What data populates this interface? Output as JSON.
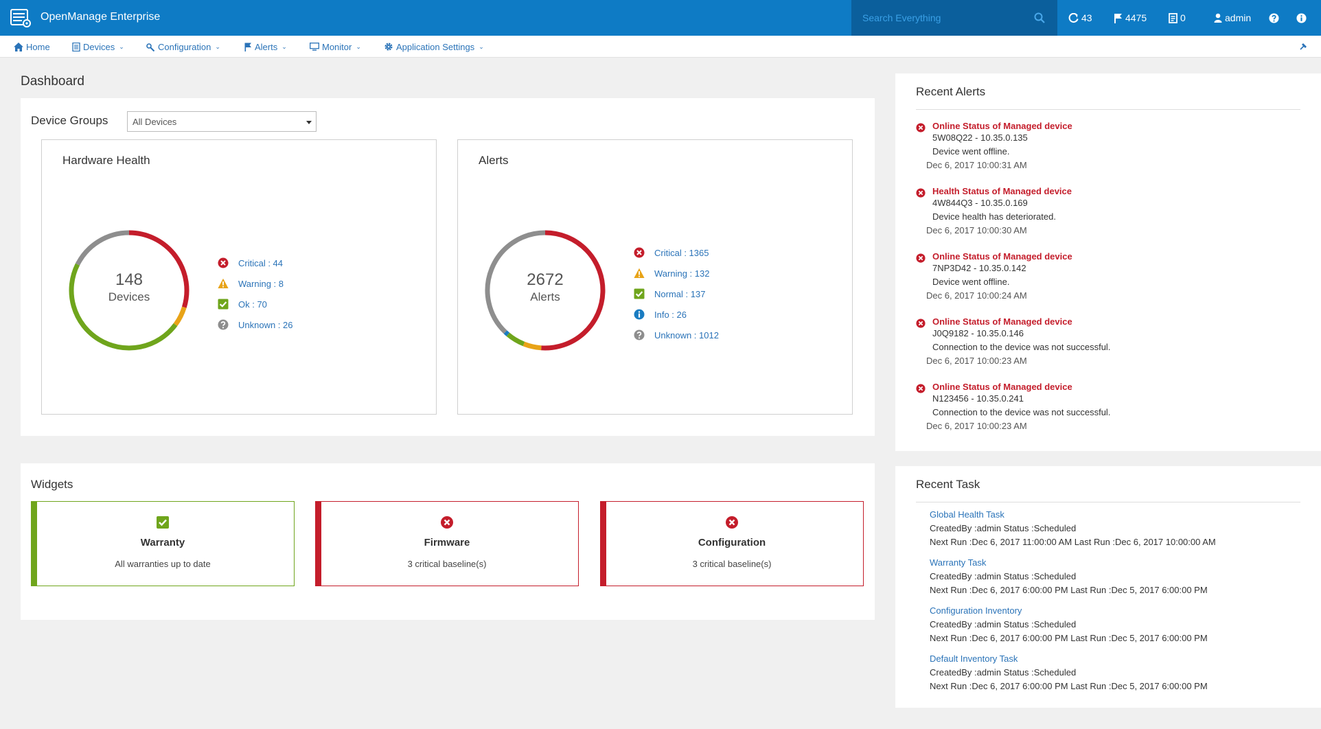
{
  "app": {
    "title": "OpenManage Enterprise",
    "logo_icon": "server-rack-icon"
  },
  "topbar": {
    "search_placeholder": "Search Everything",
    "jobs_count": "43",
    "alerts_count": "4475",
    "reports_count": "0",
    "user": "admin"
  },
  "nav": {
    "home": "Home",
    "devices": "Devices",
    "configuration": "Configuration",
    "alerts": "Alerts",
    "monitor": "Monitor",
    "app_settings": "Application Settings"
  },
  "dashboard": {
    "title": "Dashboard",
    "device_groups_label": "Device Groups",
    "device_group_selected": "All Devices"
  },
  "hardware_health": {
    "title": "Hardware Health",
    "total": "148",
    "total_label": "Devices",
    "legend": [
      {
        "label": "Critical : 44",
        "value": 44,
        "color": "#c41d2b",
        "icon": "critical-icon"
      },
      {
        "label": "Warning : 8",
        "value": 8,
        "color": "#e8a317",
        "icon": "warning-icon"
      },
      {
        "label": "Ok : 70",
        "value": 70,
        "color": "#6fa51c",
        "icon": "ok-icon"
      },
      {
        "label": "Unknown : 26",
        "value": 26,
        "color": "#8e8e8e",
        "icon": "unknown-icon"
      }
    ]
  },
  "alerts_summary": {
    "title": "Alerts",
    "total": "2672",
    "total_label": "Alerts",
    "legend": [
      {
        "label": "Critical : 1365",
        "value": 1365,
        "color": "#c41d2b",
        "icon": "critical-icon"
      },
      {
        "label": "Warning : 132",
        "value": 132,
        "color": "#e8a317",
        "icon": "warning-icon"
      },
      {
        "label": "Normal : 137",
        "value": 137,
        "color": "#6fa51c",
        "icon": "ok-icon"
      },
      {
        "label": "Info : 26",
        "value": 26,
        "color": "#1a7cc1",
        "icon": "info-icon"
      },
      {
        "label": "Unknown : 1012",
        "value": 1012,
        "color": "#8e8e8e",
        "icon": "unknown-icon"
      }
    ]
  },
  "widgets": {
    "title": "Widgets",
    "items": [
      {
        "title": "Warranty",
        "subtitle": "All warranties up to date",
        "status": "ok",
        "color": "#6fa51c"
      },
      {
        "title": "Firmware",
        "subtitle": "3 critical baseline(s)",
        "status": "critical",
        "color": "#c41d2b"
      },
      {
        "title": "Configuration",
        "subtitle": "3 critical baseline(s)",
        "status": "critical",
        "color": "#c41d2b"
      }
    ]
  },
  "recent_alerts": {
    "title": "Recent Alerts",
    "items": [
      {
        "title": "Online Status of Managed device",
        "device": "5W08Q22 - 10.35.0.135",
        "message": "Device went offline.",
        "time": "Dec 6, 2017 10:00:31 AM"
      },
      {
        "title": "Health Status of Managed device",
        "device": "4W844Q3 - 10.35.0.169",
        "message": "Device health has deteriorated.",
        "time": "Dec 6, 2017 10:00:30 AM"
      },
      {
        "title": "Online Status of Managed device",
        "device": "7NP3D42 - 10.35.0.142",
        "message": "Device went offline.",
        "time": "Dec 6, 2017 10:00:24 AM"
      },
      {
        "title": "Online Status of Managed device",
        "device": "J0Q9182 - 10.35.0.146",
        "message": "Connection to the device was not successful.",
        "time": "Dec 6, 2017 10:00:23 AM"
      },
      {
        "title": "Online Status of Managed device",
        "device": "N123456 - 10.35.0.241",
        "message": "Connection to the device was not successful.",
        "time": "Dec 6, 2017 10:00:23 AM"
      }
    ]
  },
  "recent_tasks": {
    "title": "Recent Task",
    "items": [
      {
        "name": "Global Health Task",
        "line1": "CreatedBy :admin Status :Scheduled",
        "line2": "Next Run :Dec 6, 2017 11:00:00 AM Last Run :Dec 6, 2017 10:00:00 AM"
      },
      {
        "name": "Warranty Task",
        "line1": "CreatedBy :admin Status :Scheduled",
        "line2": "Next Run :Dec 6, 2017 6:00:00 PM Last Run :Dec 5, 2017 6:00:00 PM"
      },
      {
        "name": "Configuration Inventory",
        "line1": "CreatedBy :admin Status :Scheduled",
        "line2": "Next Run :Dec 6, 2017 6:00:00 PM Last Run :Dec 5, 2017 6:00:00 PM"
      },
      {
        "name": "Default Inventory Task",
        "line1": "CreatedBy :admin Status :Scheduled",
        "line2": "Next Run :Dec 6, 2017 6:00:00 PM Last Run :Dec 5, 2017 6:00:00 PM"
      }
    ]
  }
}
